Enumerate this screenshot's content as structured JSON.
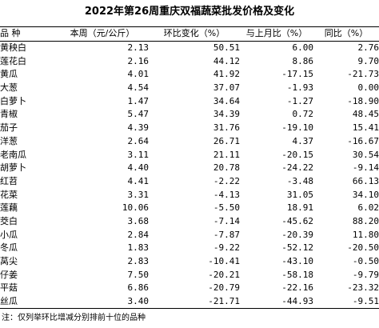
{
  "title": "2022年第26周重庆双福蔬菜批发价格及变化",
  "headers": [
    "品 种",
    "本周（元/公斤）",
    "环比变化（%）",
    "与上月比（%）",
    "同比（%）"
  ],
  "rows": [
    [
      "黄秧白",
      "2.13",
      "50.51",
      "6.00",
      "2.76"
    ],
    [
      "莲花白",
      "2.16",
      "44.12",
      "8.86",
      "9.70"
    ],
    [
      "黄瓜",
      "4.01",
      "41.92",
      "-17.15",
      "-21.73"
    ],
    [
      "大葱",
      "4.54",
      "37.07",
      "-1.93",
      "0.00"
    ],
    [
      "白萝卜",
      "1.47",
      "34.64",
      "-1.27",
      "-18.90"
    ],
    [
      "青椒",
      "5.47",
      "34.39",
      "0.72",
      "48.45"
    ],
    [
      "茄子",
      "4.39",
      "31.76",
      "-19.10",
      "15.41"
    ],
    [
      "洋葱",
      "2.64",
      "26.71",
      "4.37",
      "-16.67"
    ],
    [
      "老南瓜",
      "3.11",
      "21.11",
      "-20.15",
      "30.54"
    ],
    [
      "胡萝卜",
      "4.40",
      "20.78",
      "-24.22",
      "-9.14"
    ],
    [
      "红苕",
      "4.41",
      "-2.22",
      "-3.48",
      "66.13"
    ],
    [
      "花菜",
      "3.31",
      "-4.13",
      "31.05",
      "34.10"
    ],
    [
      "莲藕",
      "10.06",
      "-5.50",
      "18.91",
      "6.02"
    ],
    [
      "茭白",
      "3.68",
      "-7.14",
      "-45.62",
      "88.20"
    ],
    [
      "小瓜",
      "2.84",
      "-7.87",
      "-20.39",
      "11.80"
    ],
    [
      "冬瓜",
      "1.83",
      "-9.22",
      "-52.12",
      "-20.50"
    ],
    [
      "莴尖",
      "2.83",
      "-10.41",
      "-43.10",
      "-0.50"
    ],
    [
      "仔姜",
      "7.50",
      "-20.21",
      "-58.18",
      "-9.79"
    ],
    [
      "平菇",
      "6.86",
      "-20.79",
      "-22.16",
      "-23.32"
    ],
    [
      "丝瓜",
      "3.40",
      "-21.71",
      "-44.93",
      "-9.51"
    ]
  ],
  "note": "注：仅列举环比增减分别排前十位的品种"
}
